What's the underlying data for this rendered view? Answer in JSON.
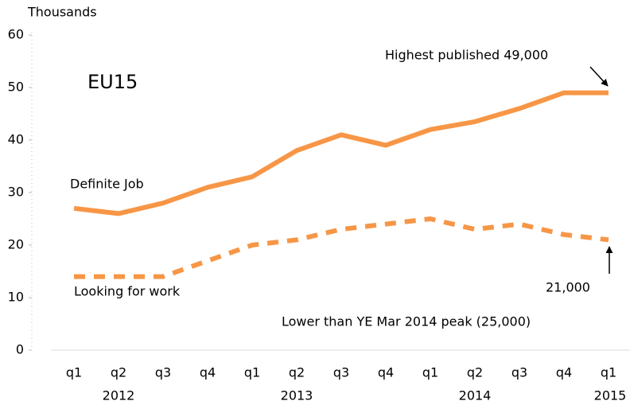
{
  "chart_data": {
    "type": "line",
    "y_axis_label": "Thousands",
    "annotations": {
      "region": "EU15",
      "definite_job": "Definite Job",
      "looking": "Looking for work",
      "highest": "Highest published  49,000",
      "latest": "21,000",
      "lower": "Lower than YE Mar  2014 peak (25,000)"
    },
    "categories": [
      "q1",
      "q2",
      "q3",
      "q4",
      "q1",
      "q2",
      "q3",
      "q4",
      "q1",
      "q2",
      "q3",
      "q4",
      "q1"
    ],
    "years": [
      null,
      "2012",
      null,
      null,
      null,
      "2013",
      null,
      null,
      null,
      "2014",
      null,
      null,
      "2015"
    ],
    "series": [
      {
        "name": "Definite Job",
        "color": "#f79646",
        "dashed": false,
        "values": [
          27,
          26,
          28,
          31,
          33,
          38,
          41,
          39,
          42,
          43.5,
          46,
          49,
          49
        ]
      },
      {
        "name": "Looking for work",
        "color": "#f79646",
        "dashed": true,
        "values": [
          14,
          14,
          14,
          17,
          20,
          21,
          23,
          24,
          25,
          23,
          24,
          22,
          21
        ]
      }
    ],
    "ylim": [
      0,
      60
    ],
    "yticks": [
      0,
      10,
      20,
      30,
      40,
      50,
      60
    ]
  }
}
